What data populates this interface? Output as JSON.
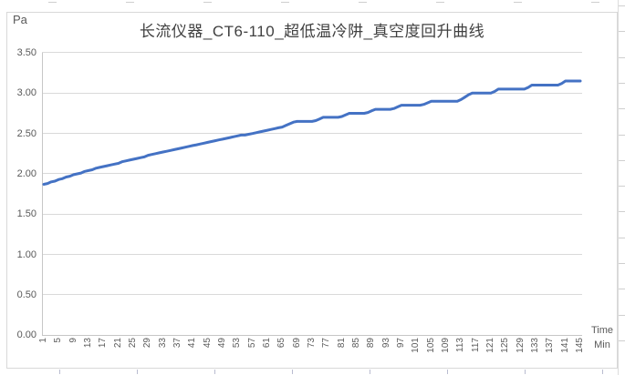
{
  "chart": {
    "unit_label": "Pa",
    "title": "长流仪器_CT6-110_超低温冷阱_真空度回升曲线",
    "x_axis_title_line1": "Time",
    "x_axis_title_line2": "Min",
    "y_tick_labels": [
      "0.00",
      "0.50",
      "1.00",
      "1.50",
      "2.00",
      "2.50",
      "3.00",
      "3.50"
    ],
    "x_tick_labels": [
      "1",
      "5",
      "9",
      "13",
      "17",
      "21",
      "25",
      "29",
      "33",
      "37",
      "41",
      "45",
      "49",
      "53",
      "57",
      "61",
      "65",
      "69",
      "73",
      "77",
      "81",
      "85",
      "89",
      "93",
      "97",
      "101",
      "105",
      "109",
      "113",
      "117",
      "121",
      "125",
      "129",
      "133",
      "137",
      "141",
      "145"
    ],
    "colors": {
      "series_line": "#4472C4",
      "gridline": "#D9D9D9",
      "axis_line": "#C6C6C6",
      "title_text": "#404040",
      "tick_text": "#595959",
      "chart_border": "#D8D8D8"
    }
  },
  "chart_data": {
    "type": "line",
    "title": "长流仪器_CT6-110_超低温冷阱_真空度回升曲线",
    "xlabel": "Time Min",
    "ylabel": "Pa",
    "x_first": 1,
    "x_last": 145,
    "x_step": 1,
    "ylim": [
      0.0,
      3.5
    ],
    "y_gridline_interval": 0.5,
    "grid": true,
    "legend": false,
    "series": [
      {
        "name": "真空度",
        "values": [
          1.87,
          1.88,
          1.9,
          1.91,
          1.93,
          1.94,
          1.96,
          1.97,
          1.99,
          2.0,
          2.01,
          2.03,
          2.04,
          2.05,
          2.07,
          2.08,
          2.09,
          2.1,
          2.11,
          2.12,
          2.13,
          2.15,
          2.16,
          2.17,
          2.18,
          2.19,
          2.2,
          2.21,
          2.23,
          2.24,
          2.25,
          2.26,
          2.27,
          2.28,
          2.29,
          2.3,
          2.31,
          2.32,
          2.33,
          2.34,
          2.35,
          2.36,
          2.37,
          2.38,
          2.39,
          2.4,
          2.41,
          2.42,
          2.43,
          2.44,
          2.45,
          2.46,
          2.47,
          2.48,
          2.48,
          2.49,
          2.5,
          2.51,
          2.52,
          2.53,
          2.54,
          2.55,
          2.56,
          2.57,
          2.58,
          2.6,
          2.62,
          2.64,
          2.65,
          2.65,
          2.65,
          2.65,
          2.65,
          2.66,
          2.68,
          2.7,
          2.7,
          2.7,
          2.7,
          2.7,
          2.71,
          2.73,
          2.75,
          2.75,
          2.75,
          2.75,
          2.75,
          2.76,
          2.78,
          2.8,
          2.8,
          2.8,
          2.8,
          2.8,
          2.81,
          2.83,
          2.85,
          2.85,
          2.85,
          2.85,
          2.85,
          2.85,
          2.86,
          2.88,
          2.9,
          2.9,
          2.9,
          2.9,
          2.9,
          2.9,
          2.9,
          2.9,
          2.92,
          2.95,
          2.98,
          3.0,
          3.0,
          3.0,
          3.0,
          3.0,
          3.0,
          3.02,
          3.05,
          3.05,
          3.05,
          3.05,
          3.05,
          3.05,
          3.05,
          3.05,
          3.07,
          3.1,
          3.1,
          3.1,
          3.1,
          3.1,
          3.1,
          3.1,
          3.1,
          3.12,
          3.15,
          3.15,
          3.15,
          3.15,
          3.15
        ]
      }
    ]
  }
}
